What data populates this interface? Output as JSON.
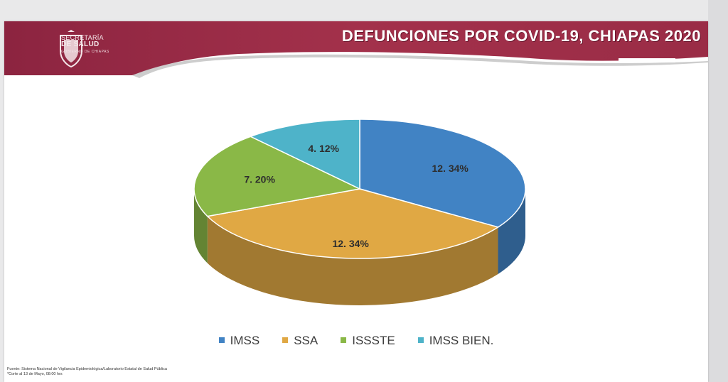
{
  "header": {
    "title": "DEFUNCIONES POR COVID-19, CHIAPAS 2020",
    "logo_line1": "SECRETARÍA",
    "logo_line2": "DE SALUD",
    "logo_line3": "GOBIERNO DE CHIAPAS"
  },
  "colors": {
    "header_band": "#a3314b",
    "header_band_dark": "#7c1f36"
  },
  "chart_data": {
    "type": "pie",
    "title": "DEFUNCIONES POR COVID-19, CHIAPAS 2020",
    "legend_position": "bottom",
    "slices": [
      {
        "name": "IMSS",
        "label": "12. 34%",
        "value": 12.34,
        "color": "#4183c4"
      },
      {
        "name": "SSA",
        "label": "12. 34%",
        "value": 12.34,
        "color": "#e0a844"
      },
      {
        "name": "ISSSTE",
        "label": "7. 20%",
        "value": 7.2,
        "color": "#8ab847"
      },
      {
        "name": "IMSS BIEN.",
        "label": "4. 12%",
        "value": 4.12,
        "color": "#4eb3c9"
      }
    ]
  },
  "footer": {
    "source_line1": "Fuente: Sistema Nacional de Vigilancia Epidemiológica/Laboratorio Estatal de Salud Pública",
    "source_line2": "*Corte al 13 de Mayo, 08:00 hrs"
  }
}
